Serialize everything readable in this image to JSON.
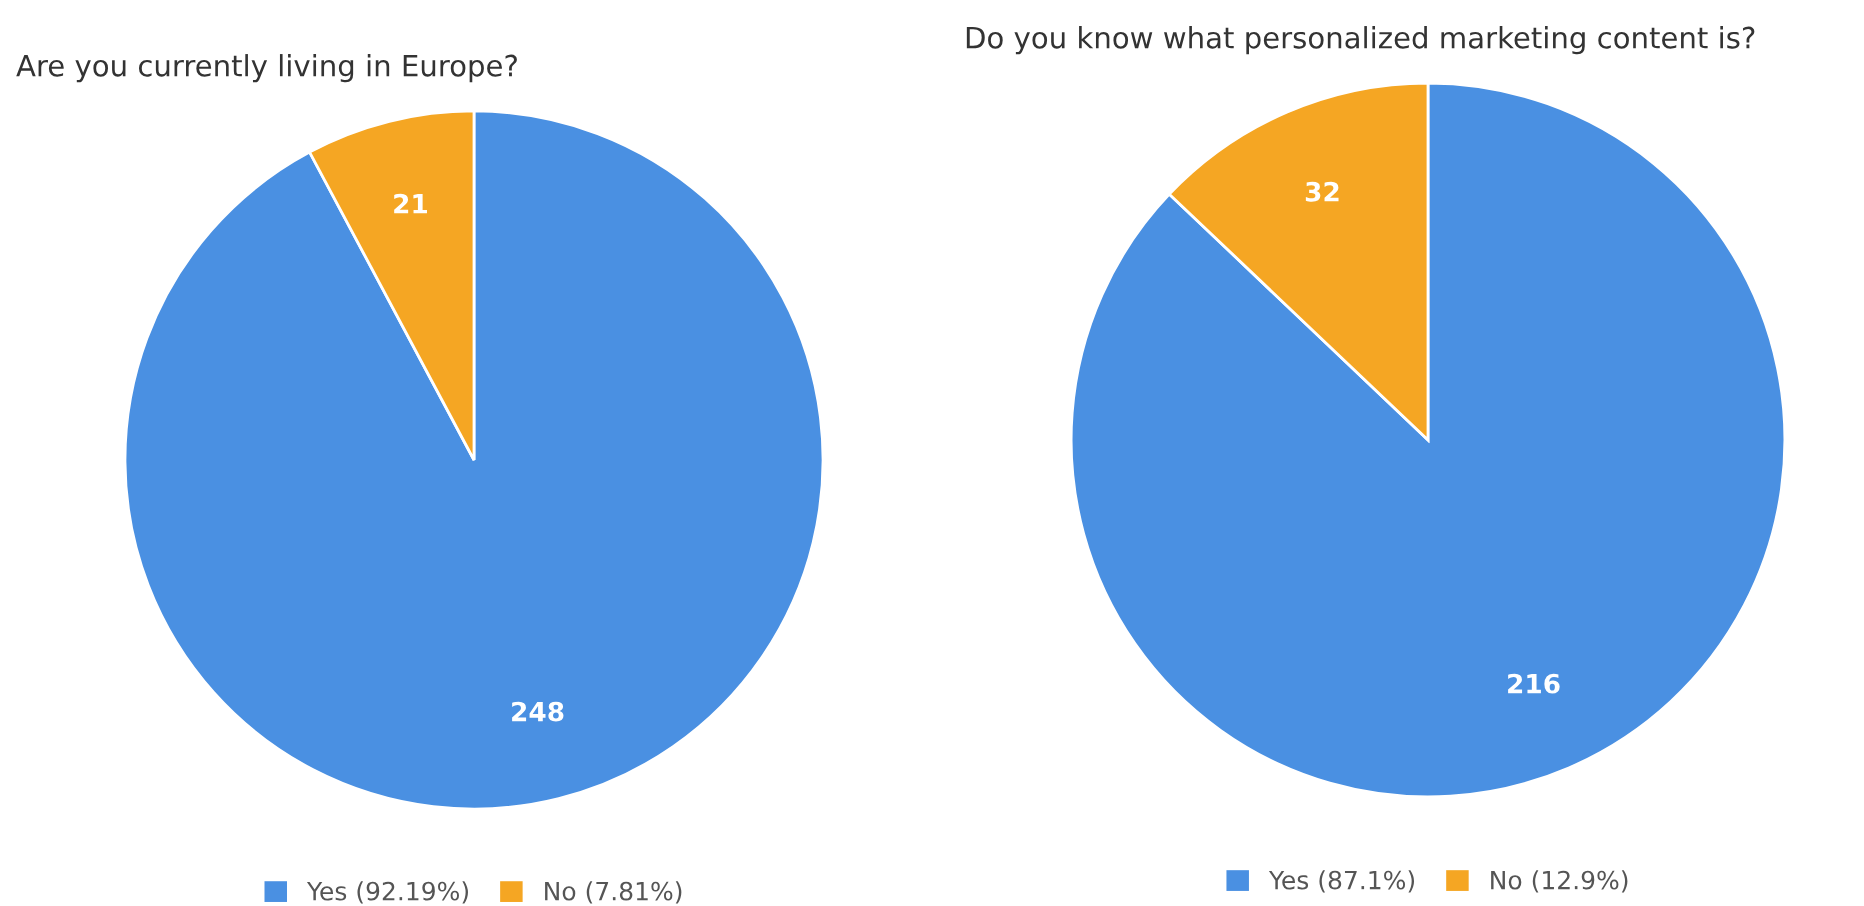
{
  "chart_data": [
    {
      "type": "pie",
      "title": "Are you currently living in Europe?",
      "categories": [
        "Yes (92.19%)",
        "No (7.81%)"
      ],
      "values": [
        248,
        21
      ],
      "colors": [
        "#4a90e2",
        "#f5a623"
      ],
      "data_labels": true,
      "legend": "bottom"
    },
    {
      "type": "pie",
      "title": "Do you know what personalized marketing content is?",
      "categories": [
        "Yes (87.1%)",
        "No (12.9%)"
      ],
      "values": [
        216,
        32
      ],
      "colors": [
        "#4a90e2",
        "#f5a623"
      ],
      "data_labels": true,
      "legend": "bottom"
    }
  ]
}
